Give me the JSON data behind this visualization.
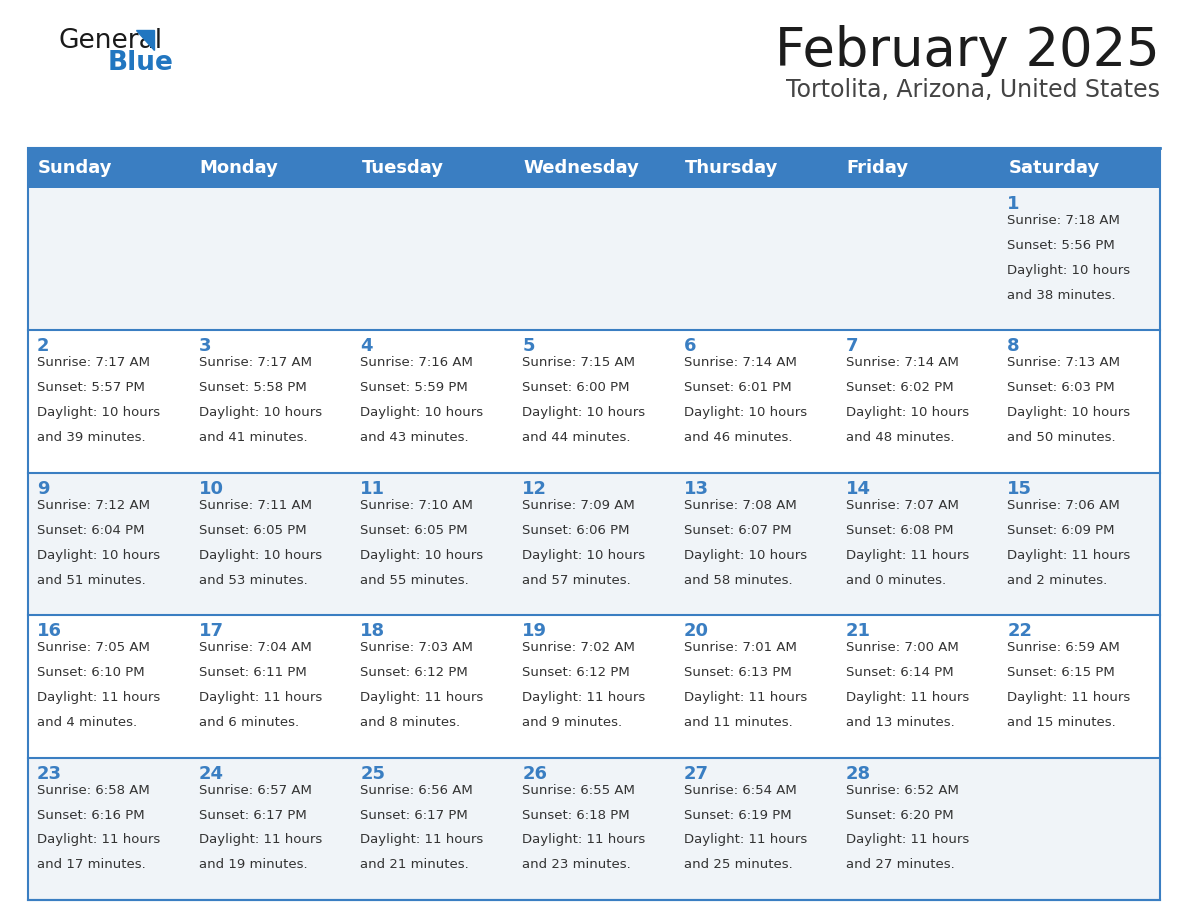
{
  "title": "February 2025",
  "subtitle": "Tortolita, Arizona, United States",
  "header_bg": "#3A7EC2",
  "header_text_color": "#FFFFFF",
  "row_bg_light": "#F0F4F8",
  "row_bg_white": "#FFFFFF",
  "day_number_color": "#3A7EC2",
  "cell_text_color": "#333333",
  "divider_color": "#3A7EC2",
  "days_of_week": [
    "Sunday",
    "Monday",
    "Tuesday",
    "Wednesday",
    "Thursday",
    "Friday",
    "Saturday"
  ],
  "weeks": [
    [
      {
        "day": null,
        "sunrise": null,
        "sunset": null,
        "daylight_line1": null,
        "daylight_line2": null
      },
      {
        "day": null,
        "sunrise": null,
        "sunset": null,
        "daylight_line1": null,
        "daylight_line2": null
      },
      {
        "day": null,
        "sunrise": null,
        "sunset": null,
        "daylight_line1": null,
        "daylight_line2": null
      },
      {
        "day": null,
        "sunrise": null,
        "sunset": null,
        "daylight_line1": null,
        "daylight_line2": null
      },
      {
        "day": null,
        "sunrise": null,
        "sunset": null,
        "daylight_line1": null,
        "daylight_line2": null
      },
      {
        "day": null,
        "sunrise": null,
        "sunset": null,
        "daylight_line1": null,
        "daylight_line2": null
      },
      {
        "day": 1,
        "sunrise": "7:18 AM",
        "sunset": "5:56 PM",
        "daylight_line1": "Daylight: 10 hours",
        "daylight_line2": "and 38 minutes."
      }
    ],
    [
      {
        "day": 2,
        "sunrise": "7:17 AM",
        "sunset": "5:57 PM",
        "daylight_line1": "Daylight: 10 hours",
        "daylight_line2": "and 39 minutes."
      },
      {
        "day": 3,
        "sunrise": "7:17 AM",
        "sunset": "5:58 PM",
        "daylight_line1": "Daylight: 10 hours",
        "daylight_line2": "and 41 minutes."
      },
      {
        "day": 4,
        "sunrise": "7:16 AM",
        "sunset": "5:59 PM",
        "daylight_line1": "Daylight: 10 hours",
        "daylight_line2": "and 43 minutes."
      },
      {
        "day": 5,
        "sunrise": "7:15 AM",
        "sunset": "6:00 PM",
        "daylight_line1": "Daylight: 10 hours",
        "daylight_line2": "and 44 minutes."
      },
      {
        "day": 6,
        "sunrise": "7:14 AM",
        "sunset": "6:01 PM",
        "daylight_line1": "Daylight: 10 hours",
        "daylight_line2": "and 46 minutes."
      },
      {
        "day": 7,
        "sunrise": "7:14 AM",
        "sunset": "6:02 PM",
        "daylight_line1": "Daylight: 10 hours",
        "daylight_line2": "and 48 minutes."
      },
      {
        "day": 8,
        "sunrise": "7:13 AM",
        "sunset": "6:03 PM",
        "daylight_line1": "Daylight: 10 hours",
        "daylight_line2": "and 50 minutes."
      }
    ],
    [
      {
        "day": 9,
        "sunrise": "7:12 AM",
        "sunset": "6:04 PM",
        "daylight_line1": "Daylight: 10 hours",
        "daylight_line2": "and 51 minutes."
      },
      {
        "day": 10,
        "sunrise": "7:11 AM",
        "sunset": "6:05 PM",
        "daylight_line1": "Daylight: 10 hours",
        "daylight_line2": "and 53 minutes."
      },
      {
        "day": 11,
        "sunrise": "7:10 AM",
        "sunset": "6:05 PM",
        "daylight_line1": "Daylight: 10 hours",
        "daylight_line2": "and 55 minutes."
      },
      {
        "day": 12,
        "sunrise": "7:09 AM",
        "sunset": "6:06 PM",
        "daylight_line1": "Daylight: 10 hours",
        "daylight_line2": "and 57 minutes."
      },
      {
        "day": 13,
        "sunrise": "7:08 AM",
        "sunset": "6:07 PM",
        "daylight_line1": "Daylight: 10 hours",
        "daylight_line2": "and 58 minutes."
      },
      {
        "day": 14,
        "sunrise": "7:07 AM",
        "sunset": "6:08 PM",
        "daylight_line1": "Daylight: 11 hours",
        "daylight_line2": "and 0 minutes."
      },
      {
        "day": 15,
        "sunrise": "7:06 AM",
        "sunset": "6:09 PM",
        "daylight_line1": "Daylight: 11 hours",
        "daylight_line2": "and 2 minutes."
      }
    ],
    [
      {
        "day": 16,
        "sunrise": "7:05 AM",
        "sunset": "6:10 PM",
        "daylight_line1": "Daylight: 11 hours",
        "daylight_line2": "and 4 minutes."
      },
      {
        "day": 17,
        "sunrise": "7:04 AM",
        "sunset": "6:11 PM",
        "daylight_line1": "Daylight: 11 hours",
        "daylight_line2": "and 6 minutes."
      },
      {
        "day": 18,
        "sunrise": "7:03 AM",
        "sunset": "6:12 PM",
        "daylight_line1": "Daylight: 11 hours",
        "daylight_line2": "and 8 minutes."
      },
      {
        "day": 19,
        "sunrise": "7:02 AM",
        "sunset": "6:12 PM",
        "daylight_line1": "Daylight: 11 hours",
        "daylight_line2": "and 9 minutes."
      },
      {
        "day": 20,
        "sunrise": "7:01 AM",
        "sunset": "6:13 PM",
        "daylight_line1": "Daylight: 11 hours",
        "daylight_line2": "and 11 minutes."
      },
      {
        "day": 21,
        "sunrise": "7:00 AM",
        "sunset": "6:14 PM",
        "daylight_line1": "Daylight: 11 hours",
        "daylight_line2": "and 13 minutes."
      },
      {
        "day": 22,
        "sunrise": "6:59 AM",
        "sunset": "6:15 PM",
        "daylight_line1": "Daylight: 11 hours",
        "daylight_line2": "and 15 minutes."
      }
    ],
    [
      {
        "day": 23,
        "sunrise": "6:58 AM",
        "sunset": "6:16 PM",
        "daylight_line1": "Daylight: 11 hours",
        "daylight_line2": "and 17 minutes."
      },
      {
        "day": 24,
        "sunrise": "6:57 AM",
        "sunset": "6:17 PM",
        "daylight_line1": "Daylight: 11 hours",
        "daylight_line2": "and 19 minutes."
      },
      {
        "day": 25,
        "sunrise": "6:56 AM",
        "sunset": "6:17 PM",
        "daylight_line1": "Daylight: 11 hours",
        "daylight_line2": "and 21 minutes."
      },
      {
        "day": 26,
        "sunrise": "6:55 AM",
        "sunset": "6:18 PM",
        "daylight_line1": "Daylight: 11 hours",
        "daylight_line2": "and 23 minutes."
      },
      {
        "day": 27,
        "sunrise": "6:54 AM",
        "sunset": "6:19 PM",
        "daylight_line1": "Daylight: 11 hours",
        "daylight_line2": "and 25 minutes."
      },
      {
        "day": 28,
        "sunrise": "6:52 AM",
        "sunset": "6:20 PM",
        "daylight_line1": "Daylight: 11 hours",
        "daylight_line2": "and 27 minutes."
      },
      {
        "day": null,
        "sunrise": null,
        "sunset": null,
        "daylight_line1": null,
        "daylight_line2": null
      }
    ]
  ],
  "logo_color_general": "#1a1a1a",
  "logo_color_blue": "#2176C0",
  "fig_width": 11.88,
  "fig_height": 9.18,
  "dpi": 100
}
